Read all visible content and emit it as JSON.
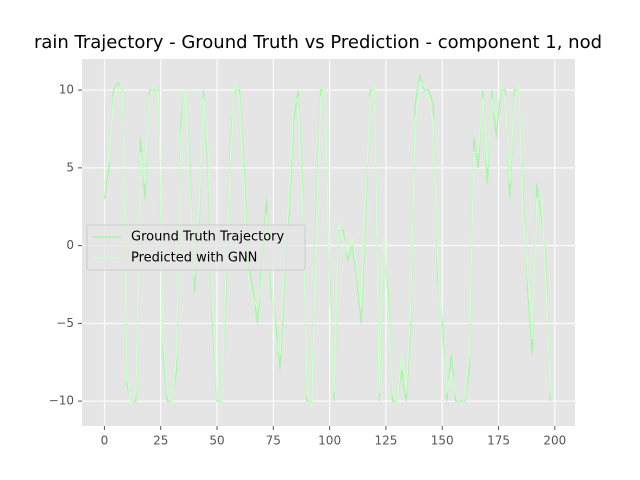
{
  "chart_data": {
    "type": "line",
    "title": "rain Trajectory - Ground Truth vs Prediction - component 1, nod",
    "x": [
      0,
      2,
      4,
      6,
      8,
      10,
      12,
      14,
      16,
      18,
      20,
      22,
      24,
      26,
      28,
      30,
      32,
      34,
      36,
      38,
      40,
      42,
      44,
      46,
      48,
      50,
      52,
      54,
      56,
      58,
      60,
      62,
      64,
      66,
      68,
      70,
      72,
      74,
      76,
      78,
      80,
      82,
      84,
      86,
      88,
      90,
      92,
      94,
      96,
      98,
      100,
      102,
      104,
      106,
      108,
      110,
      112,
      114,
      116,
      118,
      120,
      122,
      124,
      126,
      128,
      130,
      132,
      134,
      136,
      138,
      140,
      142,
      144,
      146,
      148,
      150,
      152,
      154,
      156,
      158,
      160,
      162,
      164,
      166,
      168,
      170,
      172,
      174,
      176,
      178,
      180,
      182,
      184,
      186,
      188,
      190,
      192,
      194,
      196,
      198
    ],
    "series": [
      {
        "name": "Ground Truth Trajectory",
        "color": "#a6f5a6",
        "values": [
          3,
          5,
          10,
          10.5,
          10,
          -9,
          -10,
          -10,
          7,
          3,
          10,
          10,
          10,
          -7,
          -10,
          -10,
          -8,
          8,
          10,
          5,
          -3,
          1,
          10,
          5,
          -5,
          -10,
          -10,
          -3,
          7,
          10,
          10,
          5,
          -1,
          -3,
          -5,
          -1,
          3,
          -3,
          -5,
          -8,
          -2,
          2,
          8,
          10,
          4,
          -10,
          -10,
          2,
          10,
          10,
          -2,
          -10,
          1,
          1,
          -1,
          0,
          -2,
          -5,
          2,
          10,
          10,
          -10,
          0,
          -3,
          -10,
          -10,
          -8,
          -10,
          -5,
          9,
          11,
          10,
          10,
          9,
          -2,
          -5,
          -10,
          -7,
          -10,
          -10,
          -10,
          -8,
          7,
          5,
          10,
          4,
          10,
          7,
          10,
          10,
          3,
          10,
          10,
          3,
          -3,
          -7,
          4,
          2,
          -1,
          -10
        ]
      },
      {
        "name": "Predicted with GNN",
        "color": "#ccffcc",
        "values": [
          4,
          5.5,
          9.5,
          10,
          10.3,
          -8.5,
          -10.2,
          -9.5,
          6,
          4,
          9.5,
          10.3,
          9.8,
          -6,
          -9.6,
          -10.2,
          -7,
          7,
          10.2,
          4,
          -2,
          2,
          9.5,
          6,
          -4,
          -9.8,
          -10.3,
          -2,
          6,
          10.5,
          9.5,
          4,
          -2,
          -3.5,
          -4,
          -2,
          2,
          -2,
          -6,
          -7,
          -1,
          3,
          9,
          9.5,
          3,
          -9.5,
          -10.4,
          1,
          9.5,
          10.2,
          -3,
          -9.5,
          1.5,
          0.5,
          -0.5,
          0.5,
          -1.5,
          -4,
          3,
          9.5,
          10.3,
          -9.5,
          0.5,
          -4,
          -9.5,
          -10.2,
          -7,
          -9.5,
          -4,
          8,
          10.5,
          10.3,
          9.5,
          8,
          -1,
          -6,
          -9.5,
          -8,
          -9.5,
          -10.3,
          -9.8,
          -7,
          6,
          6,
          9.5,
          5,
          9.5,
          8,
          10.3,
          9.5,
          4,
          9.5,
          10.3,
          2,
          -2,
          -6,
          3,
          3,
          -2,
          -9.5
        ]
      }
    ],
    "xlim": [
      -9.95,
      208.95
    ],
    "ylim": [
      -11.6,
      12.0
    ],
    "xticks": [
      0,
      25,
      50,
      75,
      100,
      125,
      150,
      175,
      200
    ],
    "yticks": [
      {
        "value": -10,
        "label": "−10"
      },
      {
        "value": -5,
        "label": "−5"
      },
      0,
      5,
      10
    ],
    "grid": true,
    "legend": "center left"
  }
}
